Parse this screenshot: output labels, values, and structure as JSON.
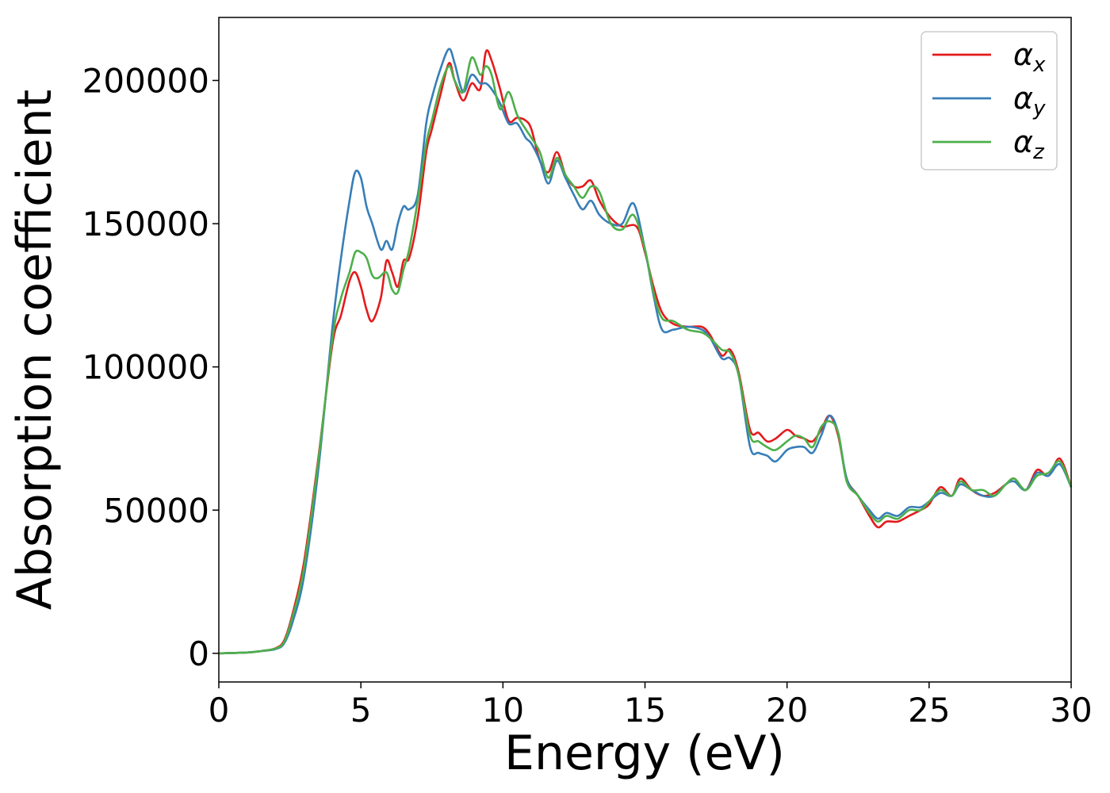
{
  "chart_data": {
    "type": "line",
    "xlabel": "Energy (eV)",
    "ylabel": "Absorption coefficient",
    "xlim": [
      0,
      30
    ],
    "ylim": [
      -10000,
      222000
    ],
    "x_ticks": [
      0,
      5,
      10,
      15,
      20,
      25,
      30
    ],
    "x_tick_labels": [
      "0",
      "5",
      "10",
      "15",
      "20",
      "25",
      "30"
    ],
    "y_ticks": [
      0,
      50000,
      100000,
      150000,
      200000
    ],
    "y_tick_labels": [
      "0",
      "50000",
      "100000",
      "150000",
      "200000"
    ],
    "grid": false,
    "legend_position": "top-right",
    "series": [
      {
        "name": "α_x",
        "label_main": "α",
        "label_sub": "x",
        "color": "#e41a1c",
        "points": [
          [
            0,
            0
          ],
          [
            1,
            300
          ],
          [
            1.5,
            800
          ],
          [
            2,
            1800
          ],
          [
            2.3,
            4500
          ],
          [
            2.6,
            14000
          ],
          [
            3,
            32000
          ],
          [
            3.5,
            68000
          ],
          [
            4,
            108000
          ],
          [
            4.3,
            118000
          ],
          [
            4.6,
            130000
          ],
          [
            4.8,
            133000
          ],
          [
            5,
            128000
          ],
          [
            5.2,
            120000
          ],
          [
            5.4,
            116000
          ],
          [
            5.7,
            124000
          ],
          [
            5.9,
            137000
          ],
          [
            6.1,
            133000
          ],
          [
            6.3,
            128000
          ],
          [
            6.5,
            137000
          ],
          [
            6.7,
            138000
          ],
          [
            7,
            152000
          ],
          [
            7.3,
            175000
          ],
          [
            7.5,
            183000
          ],
          [
            7.8,
            195000
          ],
          [
            8.1,
            206000
          ],
          [
            8.3,
            200000
          ],
          [
            8.6,
            193000
          ],
          [
            8.9,
            199000
          ],
          [
            9.2,
            197000
          ],
          [
            9.4,
            210000
          ],
          [
            9.6,
            207000
          ],
          [
            9.9,
            197000
          ],
          [
            10.2,
            186000
          ],
          [
            10.5,
            187000
          ],
          [
            10.8,
            186000
          ],
          [
            11,
            183000
          ],
          [
            11.3,
            172000
          ],
          [
            11.6,
            168000
          ],
          [
            11.9,
            175000
          ],
          [
            12.2,
            167000
          ],
          [
            12.5,
            163000
          ],
          [
            12.8,
            163000
          ],
          [
            13.1,
            165000
          ],
          [
            13.4,
            158000
          ],
          [
            13.8,
            152000
          ],
          [
            14.2,
            149000
          ],
          [
            14.7,
            149000
          ],
          [
            15,
            140000
          ],
          [
            15.3,
            128000
          ],
          [
            15.6,
            119000
          ],
          [
            16,
            115000
          ],
          [
            16.5,
            114000
          ],
          [
            17,
            114000
          ],
          [
            17.3,
            111000
          ],
          [
            17.7,
            104000
          ],
          [
            18,
            106000
          ],
          [
            18.3,
            98000
          ],
          [
            18.7,
            78000
          ],
          [
            19,
            77000
          ],
          [
            19.3,
            74000
          ],
          [
            19.6,
            75000
          ],
          [
            20,
            78000
          ],
          [
            20.3,
            76000
          ],
          [
            20.6,
            75000
          ],
          [
            20.9,
            74000
          ],
          [
            21.2,
            78000
          ],
          [
            21.5,
            83000
          ],
          [
            21.8,
            76000
          ],
          [
            22.1,
            61000
          ],
          [
            22.5,
            55000
          ],
          [
            22.9,
            48000
          ],
          [
            23.2,
            44000
          ],
          [
            23.5,
            46000
          ],
          [
            23.9,
            46000
          ],
          [
            24.3,
            48000
          ],
          [
            24.7,
            50000
          ],
          [
            25,
            52000
          ],
          [
            25.4,
            58000
          ],
          [
            25.8,
            55000
          ],
          [
            26.1,
            61000
          ],
          [
            26.5,
            57000
          ],
          [
            26.9,
            55000
          ],
          [
            27.3,
            56000
          ],
          [
            27.7,
            59000
          ],
          [
            28,
            61000
          ],
          [
            28.4,
            57000
          ],
          [
            28.8,
            64000
          ],
          [
            29.2,
            62000
          ],
          [
            29.6,
            68000
          ],
          [
            30,
            58000
          ]
        ]
      },
      {
        "name": "α_y",
        "label_main": "α",
        "label_sub": "y",
        "color": "#377eb8",
        "points": [
          [
            0,
            0
          ],
          [
            1,
            300
          ],
          [
            1.5,
            800
          ],
          [
            2,
            1500
          ],
          [
            2.3,
            3500
          ],
          [
            2.6,
            11000
          ],
          [
            3,
            27000
          ],
          [
            3.5,
            64000
          ],
          [
            4,
            114000
          ],
          [
            4.3,
            138000
          ],
          [
            4.6,
            158000
          ],
          [
            4.8,
            168000
          ],
          [
            5,
            166000
          ],
          [
            5.2,
            156000
          ],
          [
            5.4,
            150000
          ],
          [
            5.7,
            141000
          ],
          [
            5.9,
            144000
          ],
          [
            6.1,
            141000
          ],
          [
            6.3,
            150000
          ],
          [
            6.5,
            156000
          ],
          [
            6.7,
            155000
          ],
          [
            7,
            160000
          ],
          [
            7.3,
            185000
          ],
          [
            7.5,
            194000
          ],
          [
            7.8,
            204000
          ],
          [
            8.1,
            211000
          ],
          [
            8.3,
            206000
          ],
          [
            8.6,
            196000
          ],
          [
            8.9,
            202000
          ],
          [
            9.2,
            199000
          ],
          [
            9.4,
            199000
          ],
          [
            9.6,
            197000
          ],
          [
            9.9,
            192000
          ],
          [
            10.2,
            185000
          ],
          [
            10.5,
            185000
          ],
          [
            10.8,
            180000
          ],
          [
            11,
            178000
          ],
          [
            11.3,
            172000
          ],
          [
            11.6,
            164000
          ],
          [
            11.9,
            172000
          ],
          [
            12.2,
            166000
          ],
          [
            12.5,
            160000
          ],
          [
            12.8,
            155000
          ],
          [
            13.1,
            158000
          ],
          [
            13.4,
            153000
          ],
          [
            13.8,
            150000
          ],
          [
            14.2,
            150000
          ],
          [
            14.6,
            157000
          ],
          [
            15,
            141000
          ],
          [
            15.3,
            125000
          ],
          [
            15.6,
            113000
          ],
          [
            16,
            113000
          ],
          [
            16.5,
            114000
          ],
          [
            17,
            113000
          ],
          [
            17.3,
            110000
          ],
          [
            17.7,
            103000
          ],
          [
            18,
            103000
          ],
          [
            18.3,
            97000
          ],
          [
            18.7,
            72000
          ],
          [
            19,
            70000
          ],
          [
            19.3,
            69000
          ],
          [
            19.6,
            67000
          ],
          [
            20,
            71000
          ],
          [
            20.3,
            72000
          ],
          [
            20.6,
            72000
          ],
          [
            20.9,
            70000
          ],
          [
            21.2,
            76000
          ],
          [
            21.5,
            83000
          ],
          [
            21.8,
            77000
          ],
          [
            22.1,
            61000
          ],
          [
            22.5,
            55000
          ],
          [
            22.9,
            50000
          ],
          [
            23.2,
            47000
          ],
          [
            23.5,
            49000
          ],
          [
            23.9,
            48000
          ],
          [
            24.3,
            51000
          ],
          [
            24.7,
            51000
          ],
          [
            25,
            53000
          ],
          [
            25.4,
            56000
          ],
          [
            25.8,
            55000
          ],
          [
            26.1,
            59000
          ],
          [
            26.5,
            57000
          ],
          [
            26.9,
            55000
          ],
          [
            27.3,
            55000
          ],
          [
            27.7,
            59000
          ],
          [
            28,
            60000
          ],
          [
            28.4,
            57000
          ],
          [
            28.8,
            63000
          ],
          [
            29.2,
            62000
          ],
          [
            29.6,
            66000
          ],
          [
            30,
            58000
          ]
        ]
      },
      {
        "name": "α_z",
        "label_main": "α",
        "label_sub": "z",
        "color": "#4daf4a",
        "points": [
          [
            0,
            0
          ],
          [
            1,
            300
          ],
          [
            1.5,
            800
          ],
          [
            2,
            1700
          ],
          [
            2.3,
            4000
          ],
          [
            2.6,
            13000
          ],
          [
            3,
            30000
          ],
          [
            3.5,
            67000
          ],
          [
            4,
            110000
          ],
          [
            4.3,
            124000
          ],
          [
            4.6,
            133000
          ],
          [
            4.8,
            140000
          ],
          [
            5,
            140000
          ],
          [
            5.2,
            138000
          ],
          [
            5.4,
            132000
          ],
          [
            5.6,
            131000
          ],
          [
            5.9,
            133000
          ],
          [
            6.1,
            127000
          ],
          [
            6.3,
            126000
          ],
          [
            6.5,
            134000
          ],
          [
            6.7,
            141000
          ],
          [
            7,
            158000
          ],
          [
            7.3,
            178000
          ],
          [
            7.5,
            186000
          ],
          [
            7.8,
            198000
          ],
          [
            8.1,
            205000
          ],
          [
            8.3,
            200000
          ],
          [
            8.6,
            196000
          ],
          [
            8.9,
            208000
          ],
          [
            9.2,
            202000
          ],
          [
            9.4,
            205000
          ],
          [
            9.6,
            202000
          ],
          [
            9.9,
            190000
          ],
          [
            10.2,
            196000
          ],
          [
            10.5,
            188000
          ],
          [
            10.8,
            183000
          ],
          [
            11,
            180000
          ],
          [
            11.3,
            175000
          ],
          [
            11.6,
            166000
          ],
          [
            11.9,
            173000
          ],
          [
            12.2,
            167000
          ],
          [
            12.5,
            163000
          ],
          [
            12.8,
            159000
          ],
          [
            13.1,
            163000
          ],
          [
            13.4,
            161000
          ],
          [
            13.8,
            150000
          ],
          [
            14.2,
            148000
          ],
          [
            14.6,
            153000
          ],
          [
            15,
            141000
          ],
          [
            15.3,
            126000
          ],
          [
            15.6,
            117000
          ],
          [
            16,
            116000
          ],
          [
            16.5,
            113000
          ],
          [
            17,
            112000
          ],
          [
            17.3,
            110000
          ],
          [
            17.7,
            106000
          ],
          [
            18,
            105000
          ],
          [
            18.3,
            97000
          ],
          [
            18.7,
            76000
          ],
          [
            19,
            74000
          ],
          [
            19.3,
            72000
          ],
          [
            19.6,
            71000
          ],
          [
            20,
            74000
          ],
          [
            20.3,
            76000
          ],
          [
            20.6,
            75000
          ],
          [
            20.9,
            72000
          ],
          [
            21.2,
            79000
          ],
          [
            21.5,
            81000
          ],
          [
            21.8,
            77000
          ],
          [
            22.1,
            60000
          ],
          [
            22.5,
            55000
          ],
          [
            22.9,
            49000
          ],
          [
            23.2,
            46000
          ],
          [
            23.5,
            48000
          ],
          [
            23.9,
            47000
          ],
          [
            24.3,
            50000
          ],
          [
            24.7,
            50000
          ],
          [
            25,
            53000
          ],
          [
            25.4,
            57000
          ],
          [
            25.8,
            55000
          ],
          [
            26.1,
            60000
          ],
          [
            26.5,
            57000
          ],
          [
            26.9,
            57000
          ],
          [
            27.3,
            55000
          ],
          [
            27.7,
            59000
          ],
          [
            28,
            61000
          ],
          [
            28.4,
            57000
          ],
          [
            28.8,
            62000
          ],
          [
            29.2,
            63000
          ],
          [
            29.6,
            67000
          ],
          [
            30,
            58000
          ]
        ]
      }
    ]
  }
}
